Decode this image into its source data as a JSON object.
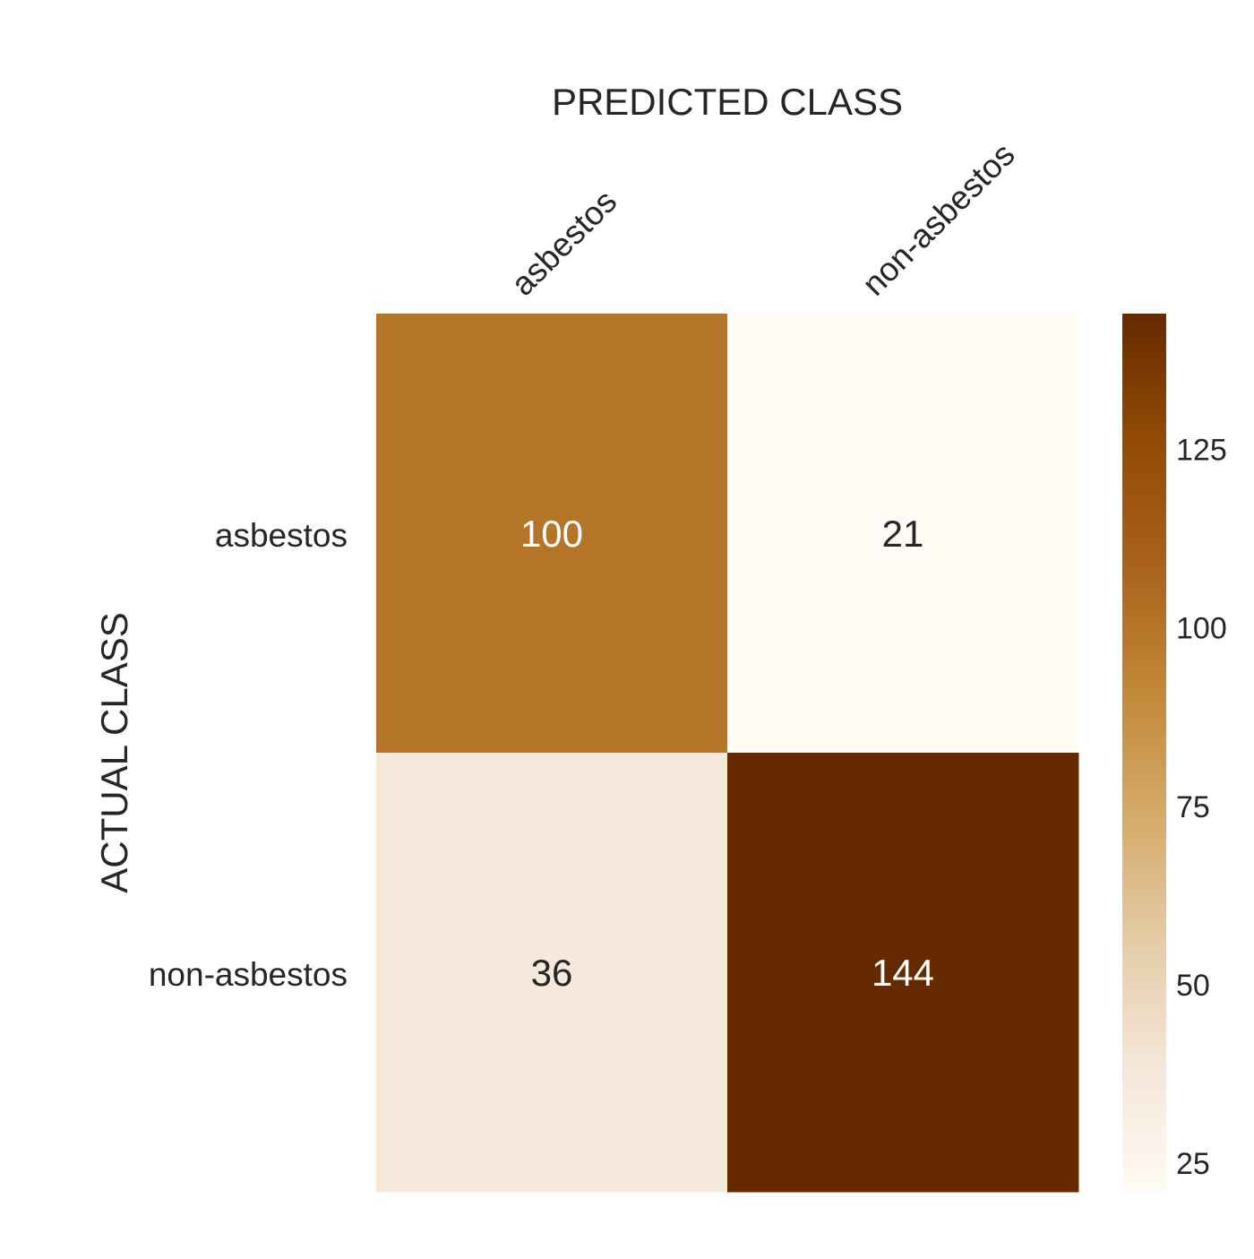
{
  "chart_data": {
    "type": "heatmap",
    "title": "",
    "xlabel": "PREDICTED CLASS",
    "ylabel": "ACTUAL CLASS",
    "x_categories": [
      "asbestos",
      "non-asbestos"
    ],
    "y_categories": [
      "asbestos",
      "non-asbestos"
    ],
    "values": [
      [
        100,
        21
      ],
      [
        36,
        144
      ]
    ],
    "colorbar": {
      "min": 21,
      "max": 144,
      "ticks": [
        25,
        50,
        75,
        100,
        125
      ],
      "colors": [
        "#fffbf5",
        "#f5e6d8",
        "#e3cca6",
        "#d5aa6a",
        "#c18838",
        "#a9621a",
        "#914b05",
        "#662a00"
      ]
    },
    "annotation_light_color": "#ffffff",
    "annotation_dark_color": "#262626"
  }
}
